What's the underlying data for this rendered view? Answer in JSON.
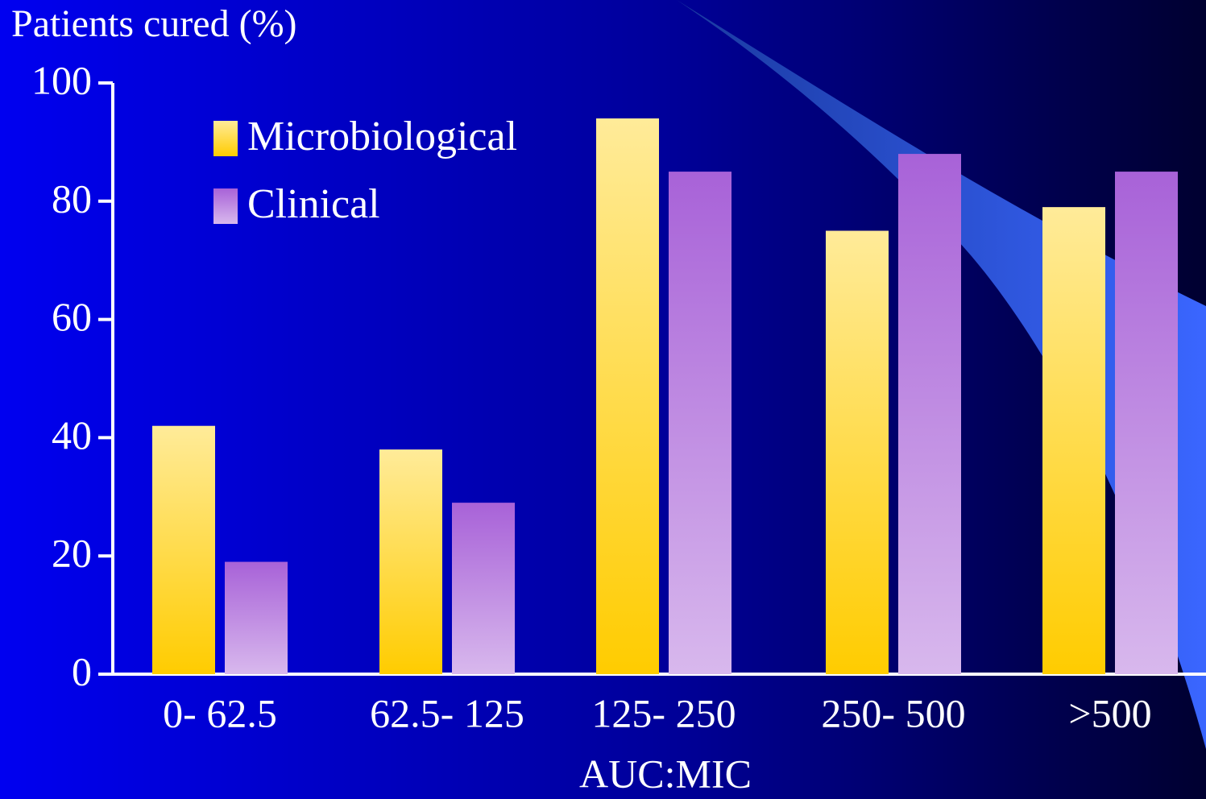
{
  "chart_data": {
    "type": "bar",
    "title": "Patients cured (%)",
    "x_label": "AUC:MIC",
    "categories": [
      "0- 62.5",
      "62.5- 125",
      "125- 250",
      "250- 500",
      ">500"
    ],
    "series": [
      {
        "name": "Microbiological",
        "color": "#ffcc00",
        "values": [
          42,
          38,
          94,
          75,
          79
        ]
      },
      {
        "name": "Clinical",
        "color": "#a862d8",
        "values": [
          19,
          29,
          85,
          88,
          85
        ]
      }
    ],
    "ylim": [
      0,
      100
    ],
    "yticks": [
      0,
      20,
      40,
      60,
      80,
      100
    ]
  }
}
